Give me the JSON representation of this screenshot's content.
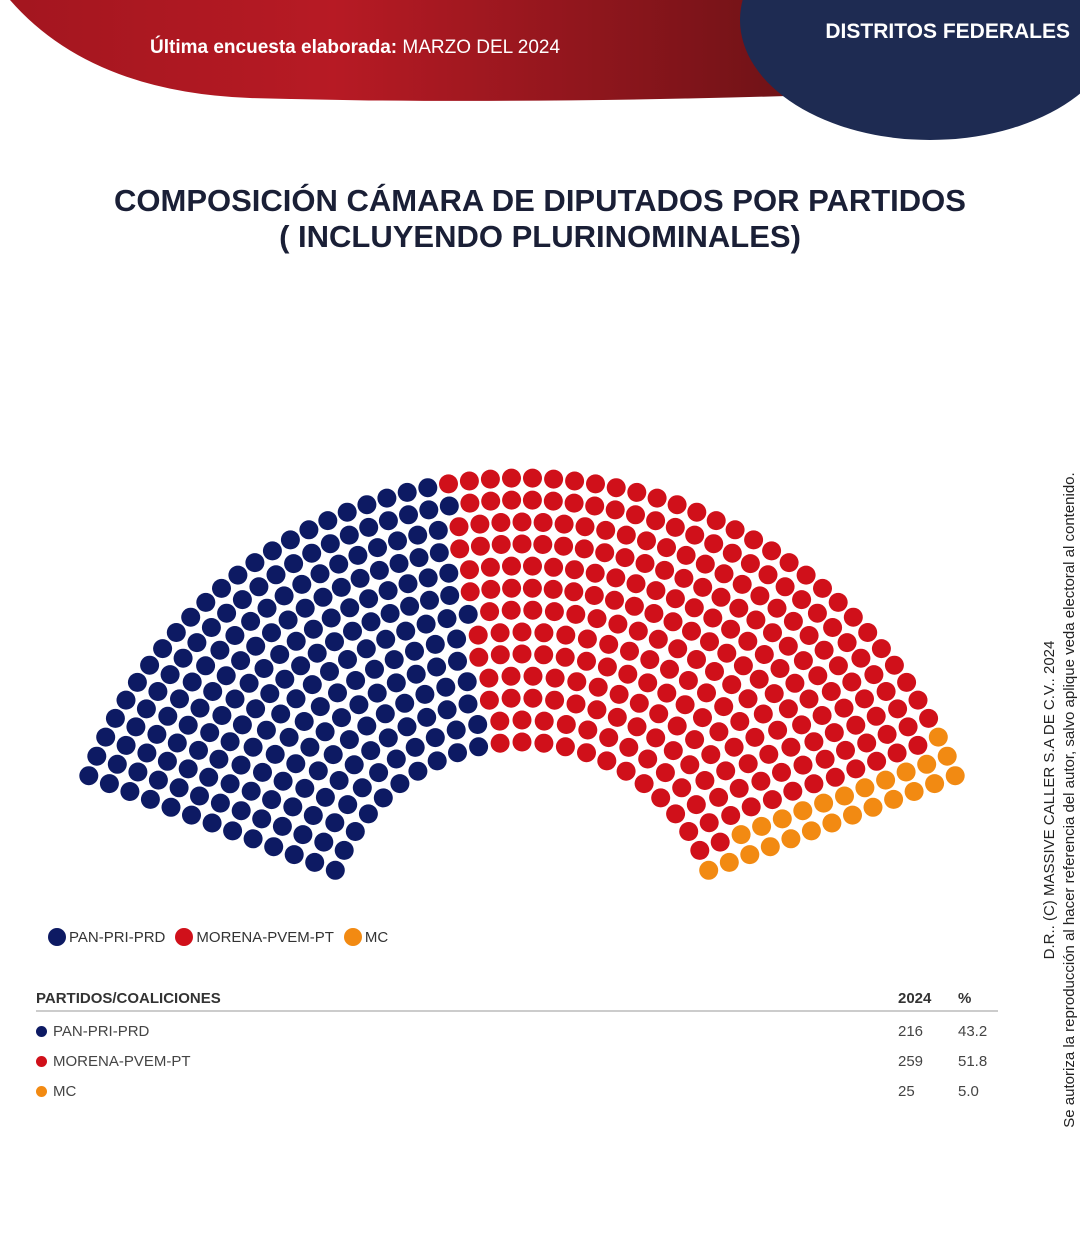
{
  "header": {
    "survey_label": "Última encuesta elaborada:",
    "survey_date": "MARZO DEL 2024",
    "badge": "DISTRITOS FEDERALES"
  },
  "title_line1": "COMPOSICIÓN CÁMARA DE DIPUTADOS POR PARTIDOS",
  "title_line2": "( INCLUYENDO PLURINOMINALES)",
  "chart_data": {
    "type": "parliament",
    "total_seats": 500,
    "series": [
      {
        "name": "PAN-PRI-PRD",
        "seats": 216,
        "percent": 43.2,
        "color": "#0d1a63"
      },
      {
        "name": "MORENA-PVEM-PT",
        "seats": 259,
        "percent": 51.8,
        "color": "#d0101a"
      },
      {
        "name": "MC",
        "seats": 25,
        "percent": 5.0,
        "color": "#f28a12"
      }
    ],
    "legend_placement": "bottom-left"
  },
  "table": {
    "headers": [
      "PARTIDOS/COALICIONES",
      "2024",
      "%"
    ],
    "rows": [
      {
        "name": "PAN-PRI-PRD",
        "seats": "216",
        "pct": "43.2"
      },
      {
        "name": "MORENA-PVEM-PT",
        "seats": "259",
        "pct": "51.8"
      },
      {
        "name": "MC",
        "seats": "25",
        "pct": "5.0"
      }
    ]
  },
  "footer": {
    "copyright": "D.R.. (C) MASSIVE CALLER S.A DE C.V.. 2024",
    "notice": "Se autoriza la reproducción al hacer referencia del autor, salvo aplique veda electoral al contenido."
  }
}
